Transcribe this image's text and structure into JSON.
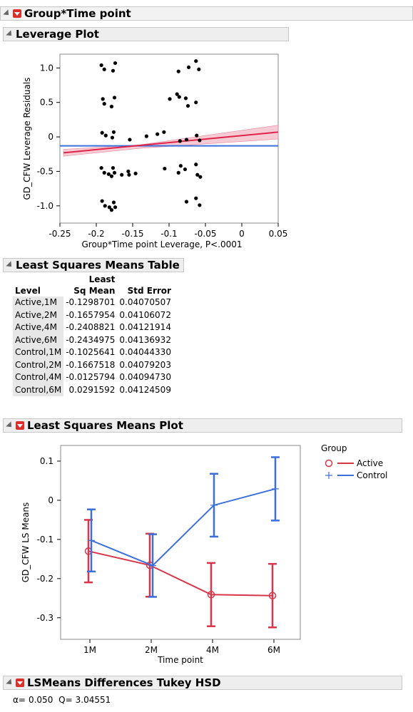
{
  "group_outline": {
    "title": "Group*Time point"
  },
  "leverage": {
    "title": "Leverage Plot",
    "chart_data": {
      "type": "scatter",
      "title": "",
      "xlabel": "Group*Time point Leverage, P<.0001",
      "ylabel": "GD_CFW Leverage Residuals",
      "xlim": [
        -0.25,
        0.05
      ],
      "ylim": [
        -1.25,
        1.2
      ],
      "x_ticks": [
        "-0.25",
        "-0.2",
        "-0.15",
        "-0.1",
        "-0.05",
        "0",
        "0.05"
      ],
      "y_ticks": [
        "1.0",
        "0.5",
        "0",
        "-0.5",
        "-1.0"
      ],
      "points": [
        [
          -0.193,
          1.04
        ],
        [
          -0.189,
          0.98
        ],
        [
          -0.174,
          1.07
        ],
        [
          -0.177,
          0.96
        ],
        [
          -0.191,
          0.55
        ],
        [
          -0.189,
          0.48
        ],
        [
          -0.175,
          0.57
        ],
        [
          -0.179,
          0.44
        ],
        [
          -0.192,
          0.06
        ],
        [
          -0.187,
          0.02
        ],
        [
          -0.176,
          0.07
        ],
        [
          -0.178,
          -0.01
        ],
        [
          -0.193,
          -0.45
        ],
        [
          -0.189,
          -0.52
        ],
        [
          -0.183,
          -0.54
        ],
        [
          -0.177,
          -0.45
        ],
        [
          -0.175,
          -0.52
        ],
        [
          -0.179,
          -0.57
        ],
        [
          -0.192,
          -0.93
        ],
        [
          -0.188,
          -1.0
        ],
        [
          -0.182,
          -1.02
        ],
        [
          -0.176,
          -0.95
        ],
        [
          -0.174,
          -1.02
        ],
        [
          -0.179,
          -1.06
        ],
        [
          -0.165,
          -0.55
        ],
        [
          -0.156,
          -0.5
        ],
        [
          -0.155,
          -0.55
        ],
        [
          -0.146,
          -0.53
        ],
        [
          -0.154,
          -0.04
        ],
        [
          -0.131,
          0.01
        ],
        [
          -0.116,
          0.04
        ],
        [
          -0.107,
          0.07
        ],
        [
          -0.106,
          -0.46
        ],
        [
          -0.099,
          0.55
        ],
        [
          -0.087,
          0.95
        ],
        [
          -0.089,
          0.62
        ],
        [
          -0.086,
          0.58
        ],
        [
          -0.085,
          -0.06
        ],
        [
          -0.084,
          -0.42
        ],
        [
          -0.087,
          -0.52
        ],
        [
          -0.073,
          1.01
        ],
        [
          -0.077,
          0.56
        ],
        [
          -0.074,
          0.45
        ],
        [
          -0.076,
          -0.04
        ],
        [
          -0.078,
          -0.47
        ],
        [
          -0.076,
          -0.94
        ],
        [
          -0.063,
          1.1
        ],
        [
          -0.059,
          0.98
        ],
        [
          -0.063,
          0.5
        ],
        [
          -0.062,
          0.02
        ],
        [
          -0.058,
          -0.05
        ],
        [
          -0.063,
          -0.4
        ],
        [
          -0.061,
          -0.55
        ],
        [
          -0.057,
          -0.58
        ],
        [
          -0.063,
          -0.89
        ],
        [
          -0.058,
          -0.99
        ]
      ],
      "fit_line": [
        [
          -0.245,
          -0.23
        ],
        [
          0.05,
          0.07
        ]
      ],
      "mean_line_y": -0.13,
      "colors": {
        "fit": "#e0234a",
        "band": "#f2a9b8",
        "mean": "#3b6fd9",
        "points": "#000000"
      }
    }
  },
  "lsm_table": {
    "title": "Least Squares Means Table",
    "headers": {
      "level": "Level",
      "least_line1": "Least",
      "least_line2": "Sq Mean",
      "std_error": "Std Error"
    },
    "rows": [
      {
        "level": "Active,1M",
        "mean": "-0.1298701",
        "se": "0.04070507"
      },
      {
        "level": "Active,2M",
        "mean": "-0.1657954",
        "se": "0.04106072"
      },
      {
        "level": "Active,4M",
        "mean": "-0.2408821",
        "se": "0.04121914"
      },
      {
        "level": "Active,6M",
        "mean": "-0.2434975",
        "se": "0.04136932"
      },
      {
        "level": "Control,1M",
        "mean": "-0.1025641",
        "se": "0.04044330"
      },
      {
        "level": "Control,2M",
        "mean": "-0.1667518",
        "se": "0.04079203"
      },
      {
        "level": "Control,4M",
        "mean": "-0.0125794",
        "se": "0.04094730"
      },
      {
        "level": "Control,6M",
        "mean": "0.0291592",
        "se": "0.04124509"
      }
    ]
  },
  "lsm_plot": {
    "title": "Least Squares Means Plot",
    "legend_title": "Group",
    "chart_data": {
      "type": "line",
      "title": "",
      "xlabel": "Time point",
      "ylabel": "GD_CFW LS Means",
      "categories": [
        "1M",
        "2M",
        "4M",
        "6M"
      ],
      "ylim": [
        -0.355,
        0.14
      ],
      "y_ticks": [
        "0.1",
        "0",
        "-0.1",
        "-0.2",
        "-0.3"
      ],
      "legend_placement": "right",
      "series": [
        {
          "name": "Active",
          "color": "#d8354a",
          "marker": "circle",
          "values": [
            -0.1298701,
            -0.1657954,
            -0.2408821,
            -0.2434975
          ],
          "se": [
            0.04070507,
            0.04106072,
            0.04121914,
            0.04136932
          ]
        },
        {
          "name": "Control",
          "color": "#3b6fd9",
          "marker": "plus",
          "values": [
            -0.1025641,
            -0.1667518,
            -0.0125794,
            0.0291592
          ],
          "se": [
            0.0404433,
            0.04079203,
            0.0409473,
            0.04124509
          ]
        }
      ]
    }
  },
  "tukey": {
    "title": "LSMeans Differences Tukey HSD",
    "alpha_label": "α=",
    "alpha_value": "0.050",
    "q_label": "Q=",
    "q_value": "3.04551"
  }
}
